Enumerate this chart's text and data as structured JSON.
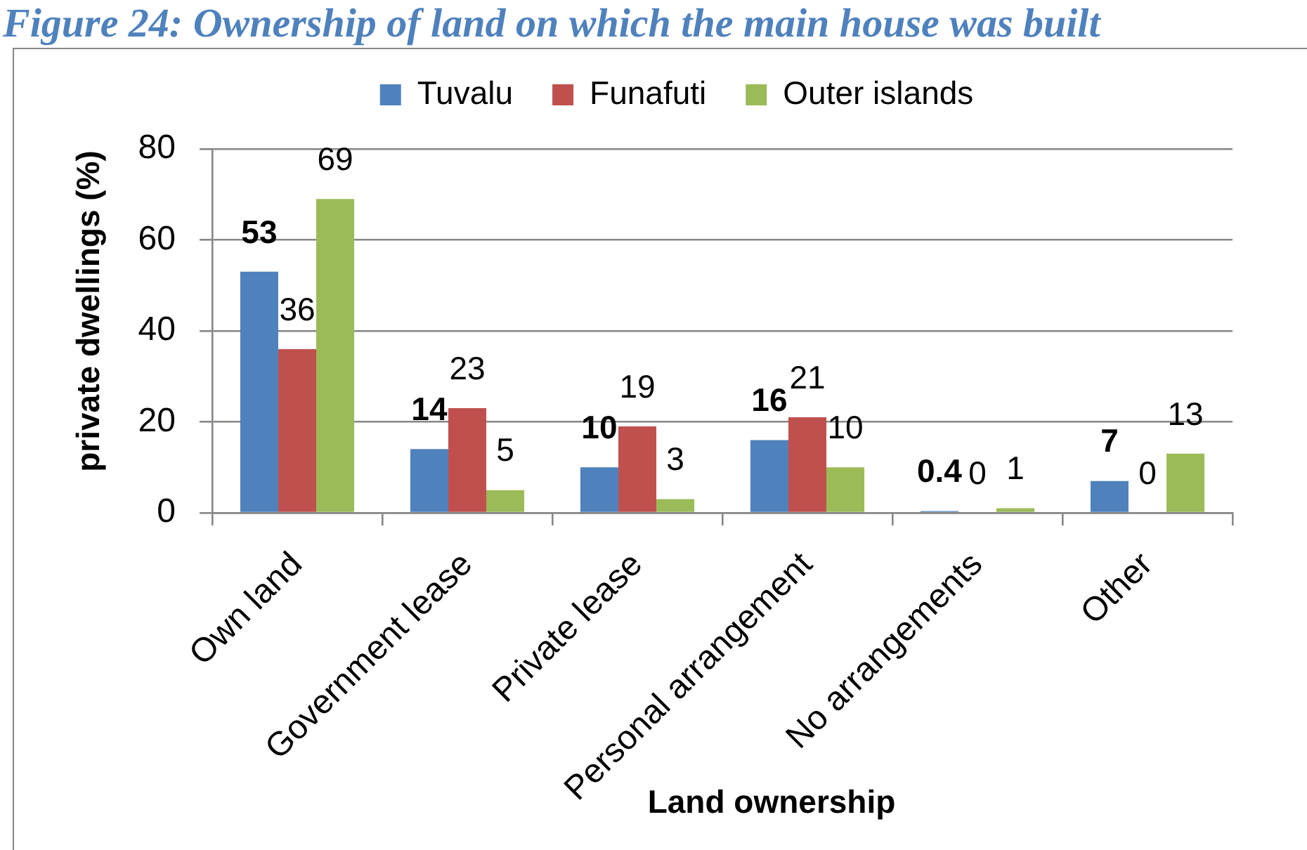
{
  "chart_data": {
    "type": "bar",
    "title": "Figure 24: Ownership of land on which the main house was built",
    "xlabel": "Land ownership",
    "ylabel": "private dwellings (%)",
    "categories": [
      "Own land",
      "Government lease",
      "Private lease",
      "Personal arrangement",
      "No arrangements",
      "Other"
    ],
    "series": [
      {
        "name": "Tuvalu",
        "color": "#4f81bd",
        "values": [
          53,
          14,
          10,
          16,
          0.4,
          7
        ]
      },
      {
        "name": "Funafuti",
        "color": "#c0504d",
        "values": [
          36,
          23,
          19,
          21,
          0,
          0
        ]
      },
      {
        "name": "Outer islands",
        "color": "#9bbb59",
        "values": [
          69,
          5,
          3,
          10,
          1,
          13
        ]
      }
    ],
    "ylim": [
      0,
      80
    ],
    "yticks": [
      0,
      20,
      40,
      60,
      80
    ],
    "grid": "y",
    "legend": "top",
    "data_labels": true
  }
}
